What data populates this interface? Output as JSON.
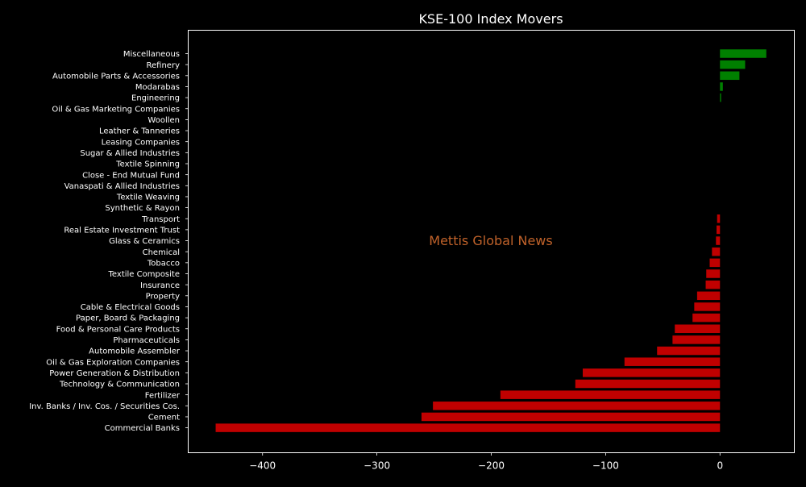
{
  "chart_data": {
    "type": "bar",
    "orientation": "horizontal",
    "title": "KSE-100 Index Movers",
    "watermark": "Mettis Global News",
    "xlabel": "",
    "ylabel": "",
    "xlim": [
      -465,
      65
    ],
    "xticks": [
      -400,
      -300,
      -200,
      -100,
      0
    ],
    "xtick_labels": [
      "−400",
      "−300",
      "−200",
      "−100",
      "0"
    ],
    "grid": false,
    "colors": {
      "background": "#000000",
      "text": "#ffffff",
      "positive": "#008000",
      "negative": "#c00000",
      "watermark": "#c0622a"
    },
    "categories": [
      "Miscellaneous",
      "Refinery",
      "Automobile Parts & Accessories",
      "Modarabas",
      "Engineering",
      "Oil & Gas Marketing Companies",
      "Woollen",
      "Leather & Tanneries",
      "Leasing Companies",
      "Sugar & Allied Industries",
      "Textile Spinning",
      "Close - End Mutual Fund",
      "Vanaspati & Allied Industries",
      "Textile Weaving",
      "Synthetic & Rayon",
      "Transport",
      "Real Estate Investment Trust",
      "Glass & Ceramics",
      "Chemical",
      "Tobacco",
      "Textile Composite",
      "Insurance",
      "Property",
      "Cable & Electrical Goods",
      "Paper, Board & Packaging",
      "Food & Personal Care Products",
      "Pharmaceuticals",
      "Automobile Assembler",
      "Oil & Gas Exploration Companies",
      "Power Generation & Distribution",
      "Technology & Communication",
      "Fertilizer",
      "Inv. Banks / Inv. Cos. / Securities Cos.",
      "Cement",
      "Commercial Banks"
    ],
    "values": [
      40.5,
      22.0,
      17.0,
      2.5,
      1.0,
      0,
      0,
      0,
      0,
      0,
      0,
      0,
      0,
      0,
      0,
      -2.5,
      -3.0,
      -3.5,
      -7.0,
      -9.0,
      -12.0,
      -12.5,
      -20.0,
      -22.5,
      -24.0,
      -39.5,
      -41.5,
      -55.0,
      -83.5,
      -120.0,
      -126.5,
      -192.0,
      -251.0,
      -261.0,
      -441.0
    ]
  }
}
